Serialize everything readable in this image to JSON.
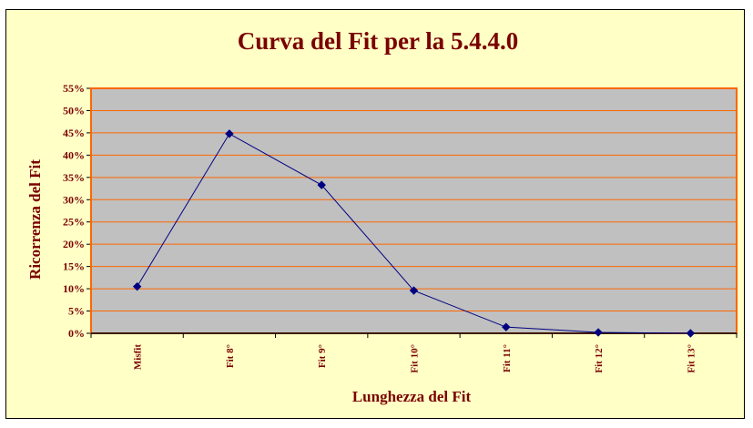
{
  "chart_data": {
    "type": "line",
    "title": "Curva del Fit per la 5.4.4.0",
    "xlabel": "Lunghezza del Fit",
    "ylabel": "Ricorrenza del Fit",
    "categories": [
      "Misfit",
      "Fit 8°",
      "Fit 9°",
      "Fit 10°",
      "Fit 11°",
      "Fit 12°",
      "Fit 13°"
    ],
    "values": [
      10.5,
      44.8,
      33.3,
      9.6,
      1.4,
      0.2,
      0.0
    ],
    "ylim": [
      0,
      55
    ],
    "yticks": [
      "0%",
      "5%",
      "10%",
      "15%",
      "20%",
      "25%",
      "30%",
      "35%",
      "40%",
      "45%",
      "50%",
      "55%"
    ],
    "grid": true,
    "legend": "none",
    "colors": {
      "background": "#ffffc6",
      "plot_area": "#c0c0c0",
      "gridline": "#ff6600",
      "plot_border": "#ff6600",
      "series": "#000080",
      "text": "#7a0000"
    }
  }
}
